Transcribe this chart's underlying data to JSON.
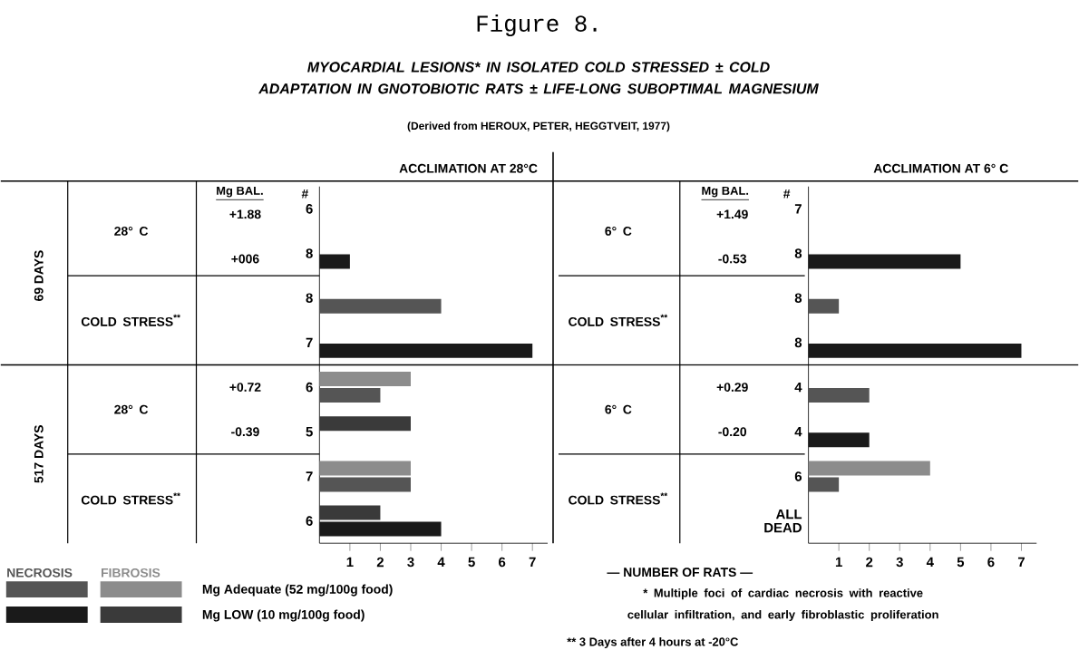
{
  "chart_data": [
    {
      "type": "bar",
      "orientation": "horizontal",
      "title": "Figure 8.",
      "subtitle": "MYOCARDIAL LESIONS* IN ISOLATED COLD STRESSED ± COLD ADAPTATION IN GNOTOBIOTIC RATS ± LIFE-LONG SUBOPTIMAL MAGNESIUM",
      "categories": [
        "6",
        "8",
        "8",
        "7",
        "6",
        "5",
        "7",
        "6"
      ],
      "series": [
        {
          "name": "NECROSIS",
          "colors": [
            "#555555",
            "#1a1a1a",
            "#555555",
            "#1a1a1a",
            "#555555",
            "#1a1a1a",
            "#555555",
            "#1a1a1a"
          ],
          "values": [
            null,
            1,
            4,
            7,
            2,
            null,
            3,
            4
          ]
        },
        {
          "name": "FIBROSIS",
          "colors": [
            "#8c8c8c",
            "#3a3a3a",
            "#8c8c8c",
            "#3a3a3a",
            "#8c8c8c",
            "#3a3a3a",
            "#8c8c8c",
            "#3a3a3a"
          ],
          "values": [
            null,
            null,
            null,
            null,
            3,
            3,
            3,
            2
          ]
        }
      ],
      "xlim": [
        0,
        7.5
      ],
      "xticks": [
        1,
        2,
        3,
        4,
        5,
        6,
        7
      ],
      "legend": "bottom left",
      "annotations": [
        "(Derived from HEROUX, PETER, HEGGTVEIT, 1977)",
        "ACCLIMATION AT 28°C",
        "69 DAYS",
        "517 DAYS",
        "28° C",
        "COLD STRESS$^{**}$",
        "28° C",
        "COLD STRESS$^{**}$",
        "Mg BAL.",
        "#",
        "+1.88",
        "+006",
        "+0.72",
        "-0.39",
        "Mg Adequate (52 mg/100g food)",
        "Mg LOW (10 mg/100g food)",
        "* Multiple foci of cardiac necrosis with reactive cellular infiltration, and early fibroblastic proliferation",
        "** 3 Days after 4 hours at -20°C"
      ]
    },
    {
      "type": "bar",
      "orientation": "horizontal",
      "title": "ACCLIMATION AT 6° C",
      "xlabel": "— NUMBER OF RATS —",
      "categories": [
        "7",
        "8",
        "8",
        "8",
        "4",
        "4",
        "6",
        "ALL DEAD"
      ],
      "series": [
        {
          "colors": [
            "#555555",
            "#1a1a1a",
            "#555555",
            "#1a1a1a",
            "#555555",
            "#1a1a1a",
            "#555555",
            "#1a1a1a"
          ],
          "values": [
            null,
            5,
            1,
            7,
            2,
            2,
            1,
            null
          ]
        },
        {
          "colors": [
            "#8c8c8c",
            "#3a3a3a",
            "#8c8c8c",
            "#3a3a3a",
            "#8c8c8c",
            "#3a3a3a",
            "#8c8c8c",
            "#3a3a3a"
          ],
          "values": [
            null,
            null,
            null,
            null,
            null,
            null,
            4,
            null
          ]
        }
      ],
      "xlim": [
        0,
        7.5
      ],
      "xticks": [
        1,
        2,
        3,
        4,
        5,
        6,
        7
      ],
      "annotations": [
        "6° C",
        "COLD STRESS$^{**}$",
        "6° C",
        "COLD STRESS$^{**}$",
        "Mg BAL.",
        "#",
        "+1.49",
        "-0.53",
        "+0.29",
        "-0.20"
      ]
    }
  ]
}
